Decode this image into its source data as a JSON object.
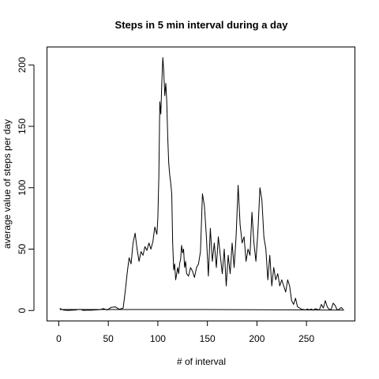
{
  "chart_data": {
    "type": "line",
    "title": "Steps in 5 min interval during a day",
    "xlabel": "# of interval",
    "ylabel": "average value of steps per day",
    "xlim": [
      -11.5,
      298.5
    ],
    "ylim": [
      -8.2,
      214.3
    ],
    "xticks": [
      0,
      50,
      100,
      150,
      200,
      250
    ],
    "yticks": [
      0,
      50,
      100,
      150,
      200
    ],
    "grid": false,
    "legend": "none",
    "line_color": "#000000",
    "series": [
      {
        "x": [
          1,
          5,
          9,
          13,
          17,
          21,
          25,
          29,
          33,
          37,
          41,
          45,
          49,
          53,
          57,
          61,
          65,
          67,
          69,
          71,
          73,
          75,
          77,
          79,
          81,
          83,
          85,
          87,
          89,
          91,
          93,
          95,
          97,
          99,
          100,
          101,
          102,
          103,
          104,
          105,
          106,
          107,
          108,
          109,
          110,
          111,
          112,
          113,
          114,
          115,
          116,
          117,
          118,
          119,
          120,
          121,
          122,
          123,
          124,
          125,
          126,
          127,
          128,
          129,
          131,
          133,
          135,
          137,
          139,
          141,
          143,
          145,
          147,
          149,
          151,
          153,
          155,
          157,
          159,
          161,
          163,
          165,
          167,
          169,
          171,
          173,
          175,
          177,
          179,
          181,
          183,
          185,
          187,
          189,
          191,
          193,
          195,
          197,
          199,
          201,
          203,
          205,
          207,
          209,
          211,
          213,
          215,
          217,
          219,
          221,
          223,
          225,
          227,
          229,
          231,
          233,
          235,
          237,
          239,
          241,
          243,
          245,
          247,
          249,
          251,
          253,
          255,
          257,
          259,
          261,
          263,
          265,
          267,
          269,
          271,
          273,
          275,
          277,
          279,
          281,
          283,
          285,
          287
        ],
        "y": [
          1.7,
          0.3,
          0.1,
          0.2,
          0.4,
          1.0,
          0.1,
          0.3,
          0.2,
          0.5,
          0.6,
          1.5,
          0.4,
          2.6,
          3.0,
          1.0,
          2.0,
          15.0,
          30.0,
          43.0,
          38.0,
          55.0,
          63.0,
          50.0,
          40.0,
          48.0,
          45.0,
          52.0,
          49.0,
          55.0,
          50.0,
          56.0,
          68.0,
          62.0,
          75.0,
          110.0,
          170.0,
          160.0,
          185.0,
          206.0,
          195.0,
          175.0,
          185.0,
          170.0,
          140.0,
          120.0,
          110.0,
          104.0,
          95.0,
          55.0,
          33.0,
          38.0,
          25.0,
          30.0,
          35.0,
          30.0,
          38.0,
          42.0,
          53.0,
          47.0,
          50.0,
          35.0,
          40.0,
          30.0,
          28.0,
          35.0,
          32.0,
          27.0,
          35.0,
          38.0,
          48.0,
          95.0,
          85.0,
          60.0,
          28.0,
          67.0,
          40.0,
          55.0,
          35.0,
          60.0,
          45.0,
          30.0,
          50.0,
          20.0,
          45.0,
          30.0,
          55.0,
          35.0,
          60.0,
          102.0,
          70.0,
          55.0,
          60.0,
          40.0,
          50.0,
          45.0,
          80.0,
          55.0,
          40.0,
          65.0,
          100.0,
          90.0,
          60.0,
          50.0,
          25.0,
          45.0,
          20.0,
          35.0,
          25.0,
          30.0,
          20.0,
          25.0,
          20.0,
          15.0,
          25.0,
          20.0,
          8.0,
          5.0,
          10.0,
          3.0,
          2.0,
          1.0,
          0.8,
          0.5,
          1.1,
          0.6,
          1.2,
          0.3,
          1.5,
          0.9,
          0.5,
          5.0,
          2.0,
          8.0,
          3.0,
          0.8,
          1.0,
          6.0,
          4.0,
          0.5,
          1.0,
          2.5,
          1.0
        ]
      },
      {
        "x": [
          1,
          145,
          288
        ],
        "y": [
          0.8,
          0.8,
          0.3
        ]
      }
    ]
  }
}
